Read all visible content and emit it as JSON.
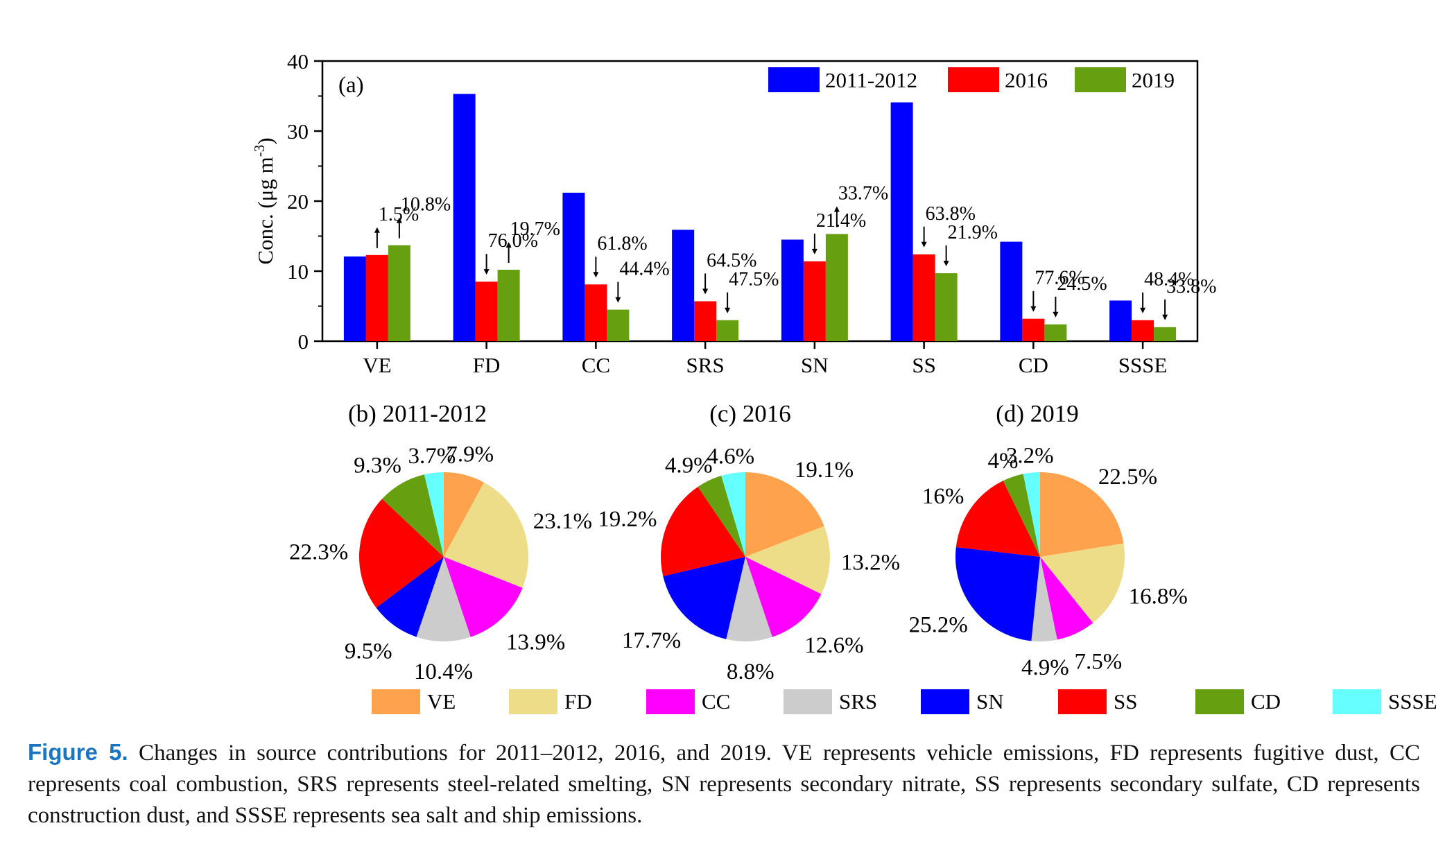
{
  "colors": {
    "period_2011_2012": "#0000ff",
    "period_2016": "#ff0000",
    "period_2019": "#669f10",
    "VE": "#ffa24d",
    "FD": "#eedd88",
    "CC": "#ff00ff",
    "SRS": "#cccccc",
    "SN": "#0000ff",
    "SS": "#ff0000",
    "CD": "#669f10",
    "SSSE": "#66ffff"
  },
  "chart_data": [
    {
      "type": "bar",
      "panel": "(a)",
      "ylabel": "Conc. (μg m-3)",
      "ylabel_parts": {
        "main": "Conc. (μg m",
        "sup": "-3",
        "close": ")"
      },
      "ylim": [
        0,
        40
      ],
      "yticks": [
        0,
        10,
        20,
        30,
        40
      ],
      "categories": [
        "VE",
        "FD",
        "CC",
        "SRS",
        "SN",
        "SS",
        "CD",
        "SSSE"
      ],
      "series": [
        {
          "name": "2011-2012",
          "values": [
            12.1,
            35.3,
            21.2,
            15.9,
            14.5,
            34.1,
            14.2,
            5.8
          ]
        },
        {
          "name": "2016",
          "values": [
            12.3,
            8.5,
            8.1,
            5.7,
            11.4,
            12.4,
            3.2,
            3.0
          ]
        },
        {
          "name": "2019",
          "values": [
            13.7,
            10.2,
            4.5,
            3.0,
            15.3,
            9.7,
            2.4,
            2.0
          ]
        }
      ],
      "annotations": [
        {
          "category": "VE",
          "series": "2016",
          "label": "1.5%",
          "direction": "up"
        },
        {
          "category": "VE",
          "series": "2019",
          "label": "10.8%",
          "direction": "up"
        },
        {
          "category": "FD",
          "series": "2016",
          "label": "76.0%",
          "direction": "down"
        },
        {
          "category": "FD",
          "series": "2019",
          "label": "19.7%",
          "direction": "up"
        },
        {
          "category": "CC",
          "series": "2016",
          "label": "61.8%",
          "direction": "down"
        },
        {
          "category": "CC",
          "series": "2019",
          "label": "44.4%",
          "direction": "down"
        },
        {
          "category": "SRS",
          "series": "2016",
          "label": "64.5%",
          "direction": "down"
        },
        {
          "category": "SRS",
          "series": "2019",
          "label": "47.5%",
          "direction": "down"
        },
        {
          "category": "SN",
          "series": "2016",
          "label": "21.4%",
          "direction": "down"
        },
        {
          "category": "SN",
          "series": "2019",
          "label": "33.7%",
          "direction": "up"
        },
        {
          "category": "SS",
          "series": "2016",
          "label": "63.8%",
          "direction": "down"
        },
        {
          "category": "SS",
          "series": "2019",
          "label": "21.9%",
          "direction": "down"
        },
        {
          "category": "CD",
          "series": "2016",
          "label": "77.6%",
          "direction": "down"
        },
        {
          "category": "CD",
          "series": "2019",
          "label": "24.5%",
          "direction": "down"
        },
        {
          "category": "SSSE",
          "series": "2016",
          "label": "48.4%",
          "direction": "down"
        },
        {
          "category": "SSSE",
          "series": "2019",
          "label": "33.8%",
          "direction": "down"
        }
      ],
      "legend": "top-right",
      "grid": false
    },
    {
      "type": "pie",
      "title": "(b) 2011-2012",
      "labels": [
        "VE",
        "FD",
        "CC",
        "SRS",
        "SN",
        "SS",
        "CD",
        "SSSE"
      ],
      "values": [
        7.9,
        23.1,
        13.9,
        10.4,
        9.5,
        22.3,
        9.3,
        3.7
      ],
      "value_labels": [
        "7.9%",
        "23.1%",
        "13.9%",
        "10.4%",
        "9.5%",
        "22.3%",
        "9.3%",
        "3.7%"
      ]
    },
    {
      "type": "pie",
      "title": "(c) 2016",
      "labels": [
        "VE",
        "FD",
        "CC",
        "SRS",
        "SN",
        "SS",
        "CD",
        "SSSE"
      ],
      "values": [
        19.1,
        13.2,
        12.6,
        8.8,
        17.7,
        19.2,
        4.9,
        4.6
      ],
      "value_labels": [
        "19.1%",
        "13.2%",
        "12.6%",
        "8.8%",
        "17.7%",
        "19.2%",
        "4.9%",
        "4.6%"
      ]
    },
    {
      "type": "pie",
      "title": "(d) 2019",
      "labels": [
        "VE",
        "FD",
        "CC",
        "SRS",
        "SN",
        "SS",
        "CD",
        "SSSE"
      ],
      "values": [
        22.5,
        16.8,
        7.5,
        4.9,
        25.2,
        16,
        4,
        3.2
      ],
      "value_labels": [
        "22.5%",
        "16.8%",
        "7.5%",
        "4.9%",
        "25.2%",
        "16%",
        "4%",
        "3.2%"
      ]
    }
  ],
  "pie_legend": [
    "VE",
    "FD",
    "CC",
    "SRS",
    "SN",
    "SS",
    "CD",
    "SSSE"
  ],
  "caption": {
    "label": "Figure 5.",
    "text": " Changes in source contributions for 2011–2012, 2016, and 2019. VE represents vehicle emissions, FD represents fugitive dust, CC represents coal combustion, SRS represents steel-related smelting, SN represents secondary nitrate, SS represents secondary sulfate, CD represents construction dust, and SSSE represents sea salt and ship emissions."
  }
}
